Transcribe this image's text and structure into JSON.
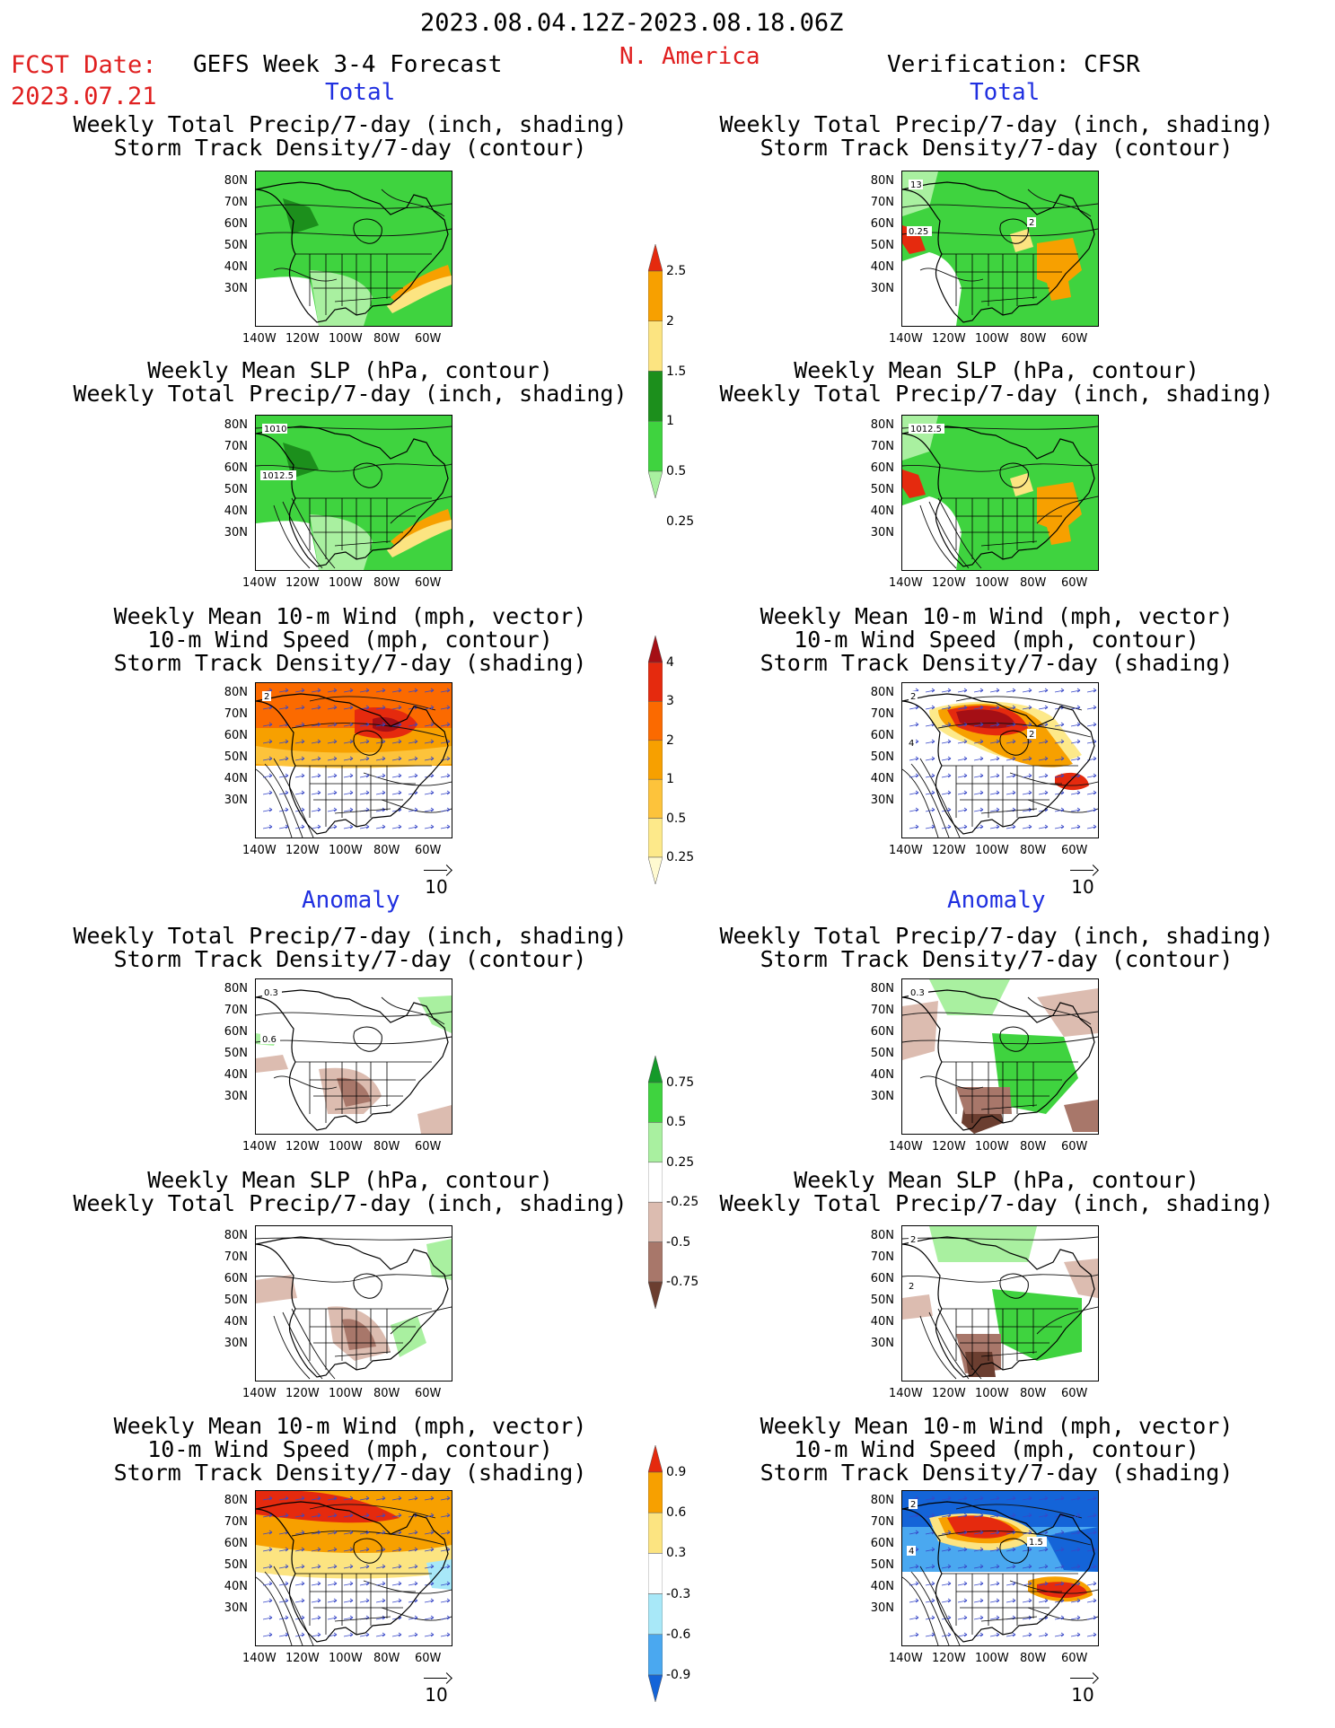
{
  "header": {
    "date_range": "2023.08.04.12Z-2023.08.18.06Z",
    "fcst_label": "FCST Date:",
    "fcst_date": "2023.07.21",
    "forecast_title": "GEFS Week 3-4 Forecast",
    "region": "N. America",
    "verification": "Verification: CFSR"
  },
  "sections": {
    "total": "Total",
    "anomaly": "Anomaly"
  },
  "titles": {
    "precip_storm": [
      "Weekly Total Precip/7-day (inch, shading)",
      "Storm Track Density/7-day (contour)"
    ],
    "slp_precip": [
      "Weekly Mean SLP (hPa, contour)",
      "Weekly Total Precip/7-day (inch, shading)"
    ],
    "wind_storm": [
      "Weekly Mean 10-m Wind (mph, vector)",
      "10-m Wind Speed (mph, contour)",
      "Storm Track Density/7-day (shading)"
    ]
  },
  "axes": {
    "lat_labels": [
      "80N",
      "70N",
      "60N",
      "50N",
      "40N",
      "30N"
    ],
    "lon_labels": [
      "140W",
      "120W",
      "100W",
      "80W",
      "60W"
    ]
  },
  "vector_ref": "10",
  "contour_labels": {
    "fcst_slp_total": [
      "1010",
      "1012.5"
    ],
    "obs_slp_total": [
      "1012.5"
    ],
    "obs_precip_total": [
      "13",
      "0.25",
      "2"
    ],
    "fcst_wind_total": [
      "2"
    ],
    "obs_wind_total": [
      "2",
      "4",
      "2"
    ],
    "fcst_precip_anom": [
      "0.3",
      "0.6"
    ],
    "obs_precip_anom": [
      "0.3"
    ],
    "obs_slp_anom": [
      "2",
      "2"
    ],
    "obs_wind_anom": [
      "2",
      "4",
      "1.5"
    ]
  },
  "colorbars": {
    "precip_total": {
      "ticks": [
        "2.5",
        "2",
        "1.5",
        "1",
        "0.5",
        "0.25"
      ],
      "colors": [
        "#e52a0e",
        "#f7a000",
        "#fce481",
        "#1c8f1c",
        "#3fd33f",
        "#a9f0a0"
      ]
    },
    "storm_total": {
      "ticks": [
        "4",
        "3",
        "2",
        "1",
        "0.5",
        "0.25"
      ],
      "colors": [
        "#a50f15",
        "#e52a0e",
        "#fb6a00",
        "#f7a000",
        "#fdc33b",
        "#fde98a",
        "#fffad0"
      ]
    },
    "precip_anom": {
      "ticks": [
        "0.75",
        "0.5",
        "0.25",
        "-0.25",
        "-0.5",
        "-0.75"
      ],
      "colors": [
        "#159a2a",
        "#3fd33f",
        "#a9f0a0",
        "#ffffff",
        "#dcbcb0",
        "#a8776a",
        "#6b3e30"
      ]
    },
    "wind_anom": {
      "ticks": [
        "0.9",
        "0.6",
        "0.3",
        "-0.3",
        "-0.6",
        "-0.9"
      ],
      "colors": [
        "#e52a0e",
        "#f7a000",
        "#fce481",
        "#ffffff",
        "#a8e8f8",
        "#4aa8f0",
        "#1464d8"
      ]
    }
  }
}
